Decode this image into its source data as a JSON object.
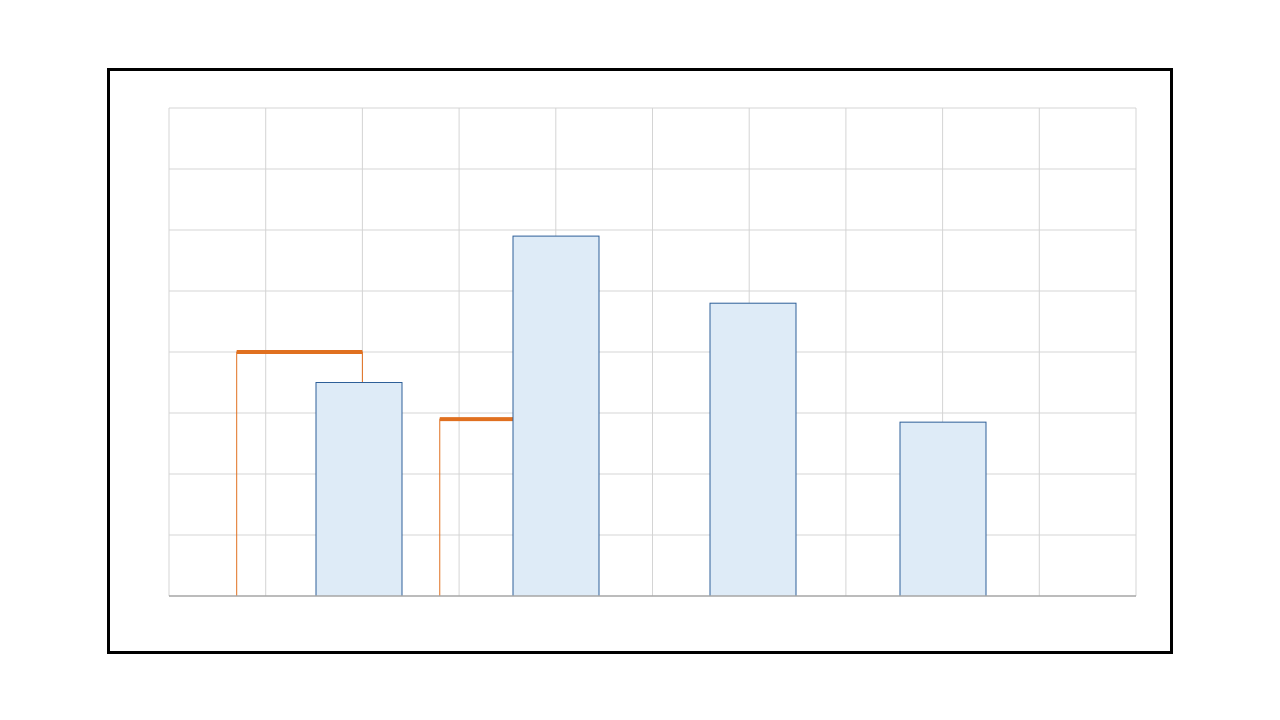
{
  "chart_data": {
    "type": "bar",
    "categories": [
      "",
      "",
      "",
      ""
    ],
    "series": [
      {
        "values": [
          3.5,
          5.9,
          4.8,
          2.85
        ],
        "color": "#2e5f98",
        "fill": "#deebf7"
      },
      {
        "values": [
          4.0,
          2.9,
          null,
          null
        ],
        "color": "#e07020"
      }
    ],
    "xlim": [
      0,
      10
    ],
    "ylim": [
      0,
      8
    ],
    "grid": true,
    "title": "",
    "xlabel": "",
    "ylabel": ""
  }
}
